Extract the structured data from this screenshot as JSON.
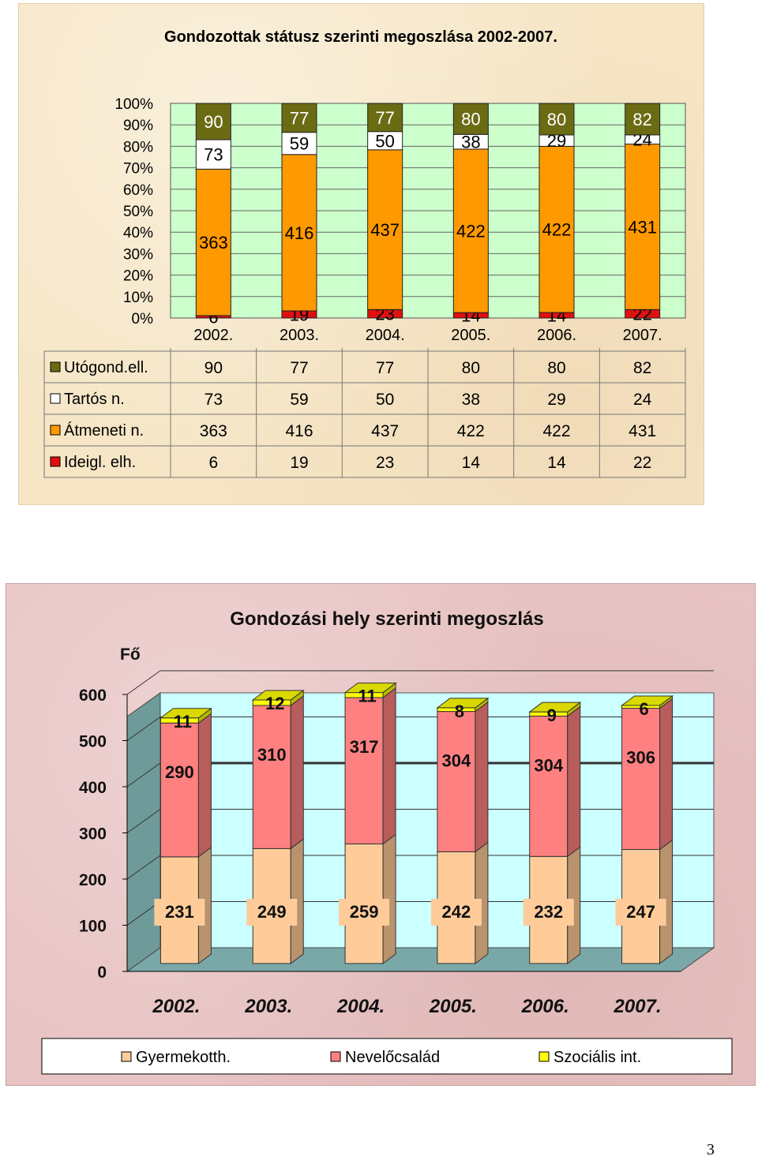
{
  "page_number": "3",
  "chart_data": [
    {
      "type": "bar",
      "stacked": "percent",
      "title": "Gondozottak státusz szerinti megoszlása 2002-2007.",
      "categories": [
        "2002.",
        "2003.",
        "2004.",
        "2005.",
        "2006.",
        "2007."
      ],
      "y_ticks": [
        "0%",
        "10%",
        "20%",
        "30%",
        "40%",
        "50%",
        "60%",
        "70%",
        "80%",
        "90%",
        "100%"
      ],
      "ylim": [
        0,
        100
      ],
      "grid": true,
      "legend_position": "data-table",
      "series": [
        {
          "name": "Ideigl. elh.",
          "color": "#e01010",
          "values": [
            6,
            19,
            23,
            14,
            14,
            22
          ]
        },
        {
          "name": "Átmeneti n.",
          "color": "#ff9900",
          "values": [
            363,
            416,
            437,
            422,
            422,
            431
          ]
        },
        {
          "name": "Tartós n.",
          "color": "#ffffff",
          "values": [
            73,
            59,
            50,
            38,
            29,
            24
          ]
        },
        {
          "name": "Utógond.ell.",
          "color": "#6b6b14",
          "values": [
            90,
            77,
            77,
            80,
            80,
            82
          ]
        }
      ],
      "table_rows": [
        {
          "label": "Utógond.ell.",
          "color": "#6b6b14",
          "values": [
            "90",
            "77",
            "77",
            "80",
            "80",
            "82"
          ]
        },
        {
          "label": "Tartós n.",
          "color": "#ffffff",
          "values": [
            "73",
            "59",
            "50",
            "38",
            "29",
            "24"
          ]
        },
        {
          "label": "Átmeneti n.",
          "color": "#ff9900",
          "values": [
            "363",
            "416",
            "437",
            "422",
            "422",
            "431"
          ]
        },
        {
          "label": "Ideigl. elh.",
          "color": "#e01010",
          "values": [
            "6",
            "19",
            "23",
            "14",
            "14",
            "22"
          ]
        }
      ]
    },
    {
      "type": "bar",
      "stacked": "absolute",
      "style": "3d",
      "title": "Gondozási hely szerinti megoszlás",
      "ylabel": "Fő",
      "categories": [
        "2002.",
        "2003.",
        "2004.",
        "2005.",
        "2006.",
        "2007."
      ],
      "y_ticks": [
        "0",
        "100",
        "200",
        "300",
        "400",
        "500",
        "600"
      ],
      "ylim": [
        0,
        600
      ],
      "grid": true,
      "legend_position": "bottom",
      "series": [
        {
          "name": "Gyermekotth.",
          "color": "#ffcc99",
          "values": [
            231,
            249,
            259,
            242,
            232,
            247
          ]
        },
        {
          "name": "Nevelőcsalád",
          "color": "#ff8080",
          "values": [
            290,
            310,
            317,
            304,
            304,
            306
          ]
        },
        {
          "name": "Szociális int.",
          "color": "#ffff00",
          "values": [
            11,
            12,
            11,
            8,
            9,
            6
          ]
        }
      ]
    }
  ]
}
